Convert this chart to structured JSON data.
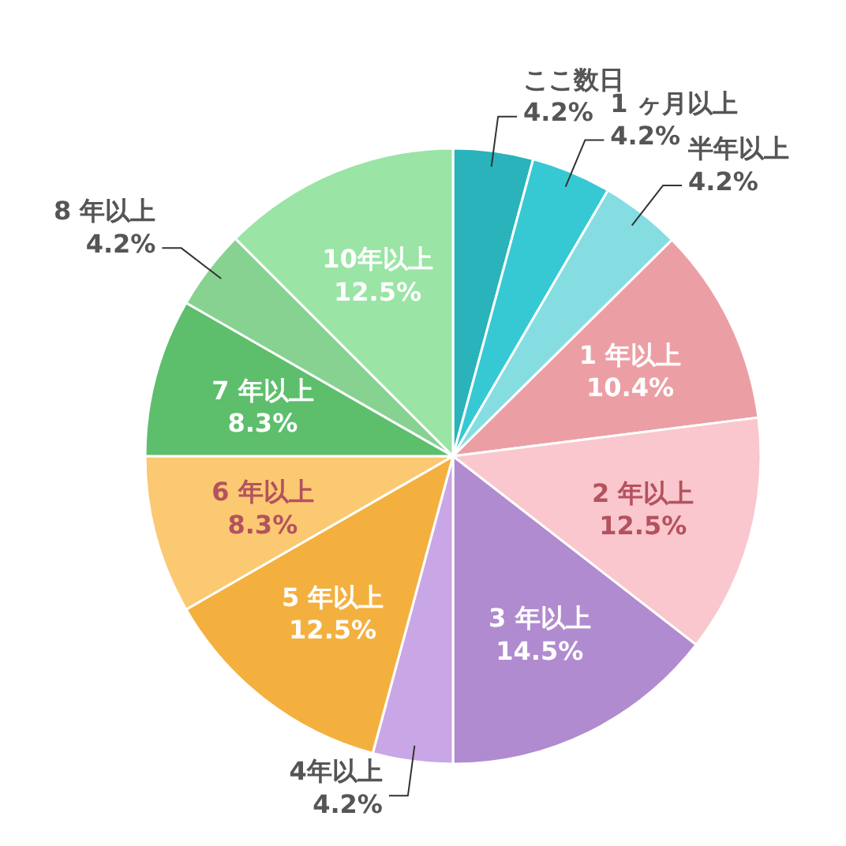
{
  "chart_data": {
    "type": "pie",
    "categories": [
      "ここ数日",
      "1 ヶ月以上",
      "半年以上",
      "1 年以上",
      "2 年以上",
      "3 年以上",
      "4年以上",
      "5 年以上",
      "6 年以上",
      "7 年以上",
      "8 年以上",
      "10年以上"
    ],
    "values": [
      4.2,
      4.2,
      4.2,
      10.4,
      12.5,
      14.5,
      4.2,
      12.5,
      8.3,
      8.3,
      4.2,
      12.5
    ],
    "colors": [
      "#2ab3ba",
      "#36c9d3",
      "#85dde1",
      "#eb9fa5",
      "#f9c7cd",
      "#b08bcf",
      "#c9a7e6",
      "#f4b03e",
      "#fbc972",
      "#5dbe6c",
      "#87d291",
      "#9ae4a5"
    ],
    "value_labels": [
      "4.2%",
      "4.2%",
      "4.2%",
      "10.4%",
      "12.5%",
      "14.5%",
      "4.2%",
      "12.5%",
      "8.3%",
      "8.3%",
      "4.2%",
      "12.5%"
    ]
  }
}
